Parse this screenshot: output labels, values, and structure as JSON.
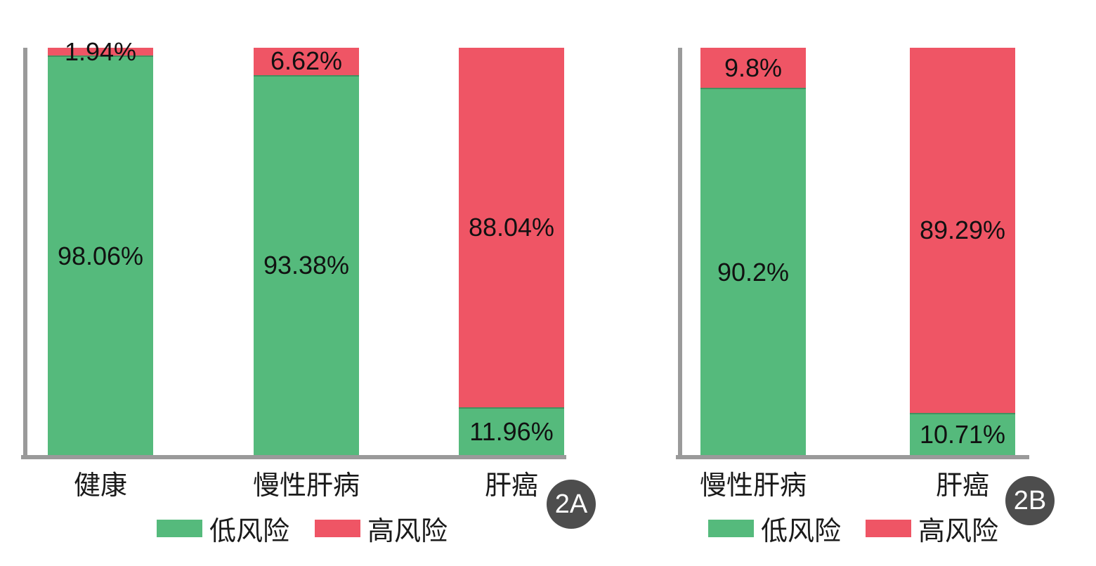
{
  "colors": {
    "low_risk_green": "#55ba7c",
    "high_risk_red": "#ef5565",
    "axis_gray": "#9a9a9a",
    "badge_bg": "#4d4d4d",
    "badge_text": "#ffffff",
    "label_text": "#1a1a1a"
  },
  "chart_data": [
    {
      "type": "bar",
      "stacked": true,
      "orientation": "vertical",
      "panel_label": "2A",
      "unit": "%",
      "ylim": [
        0,
        100
      ],
      "grid": false,
      "legend_position": "bottom",
      "categories": [
        "健康",
        "慢性肝病",
        "肝癌"
      ],
      "series": [
        {
          "name": "低风险",
          "color": "#55ba7c",
          "values": [
            98.06,
            93.38,
            11.96
          ]
        },
        {
          "name": "高风险",
          "color": "#ef5565",
          "values": [
            1.94,
            6.62,
            88.04
          ]
        }
      ],
      "value_labels": [
        [
          "98.06%",
          "1.94%"
        ],
        [
          "93.38%",
          "6.62%"
        ],
        [
          "11.96%",
          "88.04%"
        ]
      ]
    },
    {
      "type": "bar",
      "stacked": true,
      "orientation": "vertical",
      "panel_label": "2B",
      "unit": "%",
      "ylim": [
        0,
        100
      ],
      "grid": false,
      "legend_position": "bottom",
      "categories": [
        "慢性肝病",
        "肝癌"
      ],
      "series": [
        {
          "name": "低风险",
          "color": "#55ba7c",
          "values": [
            90.2,
            10.71
          ]
        },
        {
          "name": "高风险",
          "color": "#ef5565",
          "values": [
            9.8,
            89.29
          ]
        }
      ],
      "value_labels": [
        [
          "90.2%",
          "9.8%"
        ],
        [
          "10.71%",
          "89.29%"
        ]
      ]
    }
  ]
}
